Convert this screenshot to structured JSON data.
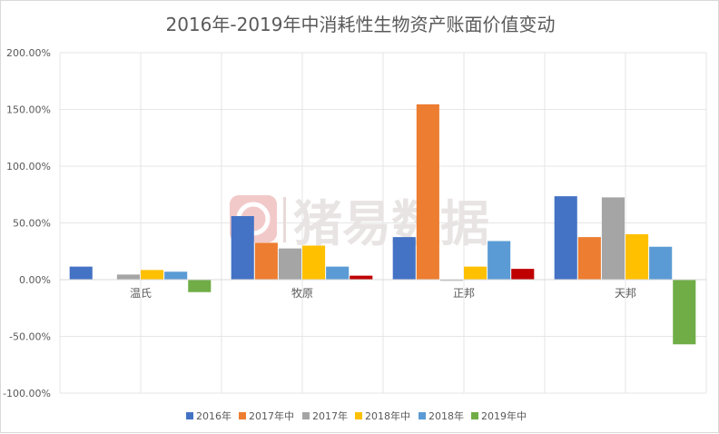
{
  "chart_data": {
    "type": "bar",
    "title": "2016年-2019年中消耗性生物资产账面价值变动",
    "categories": [
      "温氏",
      "牧原",
      "正邦",
      "天邦"
    ],
    "series": [
      {
        "name": "2016年",
        "color": "#4472C4",
        "values": [
          11.5,
          56,
          37.5,
          73.5
        ]
      },
      {
        "name": "2017年中",
        "color": "#ED7D31",
        "values": [
          0,
          32.5,
          154.5,
          37.5
        ]
      },
      {
        "name": "2017年",
        "color": "#A5A5A5",
        "values": [
          4.5,
          27.5,
          -1,
          72.5
        ]
      },
      {
        "name": "2018年中",
        "color": "#FFC000",
        "values": [
          8.5,
          30,
          11.5,
          40
        ]
      },
      {
        "name": "2018年",
        "color": "#5B9BD5",
        "values": [
          7,
          11.5,
          34,
          29
        ]
      },
      {
        "name": "2019年中",
        "color_by_category": [
          "#70AD47",
          "#C00000",
          "#C00000",
          "#70AD47"
        ],
        "values": [
          -11,
          3.5,
          9.5,
          -57
        ]
      }
    ],
    "ylim": [
      -100,
      200
    ],
    "yticks": [
      200,
      150,
      100,
      50,
      0,
      -50,
      -100
    ],
    "ytick_labels": [
      "200.00%",
      "150.00%",
      "100.00%",
      "50.00%",
      "0.00%",
      "-50.00%",
      "-100.00%"
    ],
    "grid": true,
    "legend_position": "bottom",
    "watermark": "猪易数据"
  }
}
